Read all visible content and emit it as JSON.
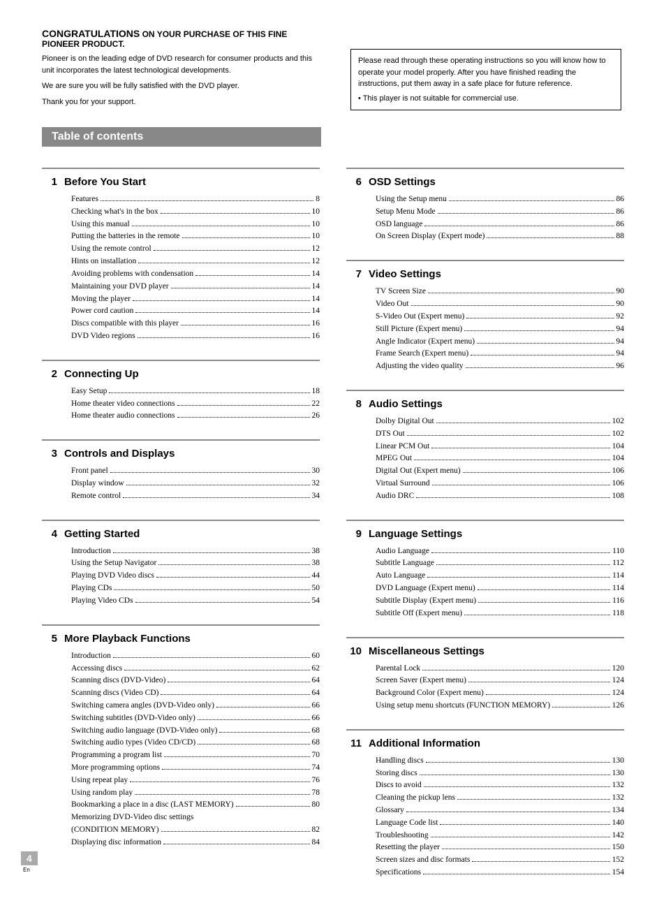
{
  "header": {
    "congrats_big": "CONGRATULATIONS",
    "congrats_rest": " ON YOUR PURCHASE OF THIS FINE PIONEER PRODUCT.",
    "intro1": "Pioneer is on the leading edge of DVD research for consumer products and this unit incorporates the latest technological developments.",
    "intro2": "We are sure you will be fully satisfied with the DVD player.",
    "intro3": "Thank you for your support."
  },
  "note_box": {
    "text": "Please read through these operating instructions so you will know how to operate your model properly. After you have finished reading the instructions, put them away in a safe place for future reference.",
    "bullet": "• This player is not suitable for commercial use."
  },
  "toc_banner": "Table of contents",
  "footer": {
    "page_num": "4",
    "lang": "En"
  },
  "colors": {
    "banner_bg": "#888888",
    "rule": "#888888"
  },
  "left_sections": [
    {
      "num": "1",
      "title": "Before You Start",
      "items": [
        {
          "label": "Features",
          "page": "8"
        },
        {
          "label": "Checking what's in the box",
          "page": "10"
        },
        {
          "label": "Using this manual",
          "page": "10"
        },
        {
          "label": "Putting the batteries in the remote",
          "page": "10"
        },
        {
          "label": "Using the remote control",
          "page": "12"
        },
        {
          "label": "Hints on installation",
          "page": "12"
        },
        {
          "label": "Avoiding problems with condensation",
          "page": "14"
        },
        {
          "label": "Maintaining your DVD player",
          "page": "14"
        },
        {
          "label": "Moving the player",
          "page": "14"
        },
        {
          "label": "Power cord caution",
          "page": "14"
        },
        {
          "label": "Discs compatible with this player",
          "page": "16"
        },
        {
          "label": "DVD Video regions",
          "page": "16"
        }
      ]
    },
    {
      "num": "2",
      "title": "Connecting Up",
      "items": [
        {
          "label": "Easy Setup",
          "page": "18"
        },
        {
          "label": "Home theater video connections",
          "page": "22"
        },
        {
          "label": "Home theater audio connections",
          "page": "26"
        }
      ]
    },
    {
      "num": "3",
      "title": "Controls and Displays",
      "items": [
        {
          "label": "Front panel",
          "page": "30"
        },
        {
          "label": "Display window",
          "page": "32"
        },
        {
          "label": "Remote control",
          "page": "34"
        }
      ]
    },
    {
      "num": "4",
      "title": "Getting Started",
      "items": [
        {
          "label": "Introduction",
          "page": "38"
        },
        {
          "label": "Using the Setup Navigator",
          "page": "38"
        },
        {
          "label": "Playing DVD Video discs",
          "page": "44"
        },
        {
          "label": "Playing CDs",
          "page": "50"
        },
        {
          "label": "Playing Video CDs",
          "page": "54"
        }
      ]
    },
    {
      "num": "5",
      "title": "More Playback Functions",
      "items": [
        {
          "label": "Introduction",
          "page": "60"
        },
        {
          "label": "Accessing discs",
          "page": "62"
        },
        {
          "label": "Scanning discs (DVD-Video)",
          "page": "64"
        },
        {
          "label": "Scanning discs (Video CD)",
          "page": "64"
        },
        {
          "label": "Switching camera angles (DVD-Video only)",
          "page": "66"
        },
        {
          "label": "Switching subtitles (DVD-Video only)",
          "page": "66"
        },
        {
          "label": "Switching audio language (DVD-Video only)",
          "page": "68"
        },
        {
          "label": "Switching audio types (Video CD/CD)",
          "page": "68"
        },
        {
          "label": "Programming a program list",
          "page": "70"
        },
        {
          "label": "More programming options",
          "page": "74"
        },
        {
          "label": "Using repeat play",
          "page": "76"
        },
        {
          "label": "Using random play",
          "page": "78"
        },
        {
          "label": "Bookmarking a place in a disc (LAST MEMORY)",
          "page": "80"
        },
        {
          "label": "Memorizing DVD-Video disc settings (CONDITION MEMORY)",
          "page": "82",
          "wrap": true
        },
        {
          "label": "Displaying disc information",
          "page": "84"
        }
      ]
    }
  ],
  "right_sections": [
    {
      "num": "6",
      "title": "OSD Settings",
      "items": [
        {
          "label": "Using the Setup menu",
          "page": "86"
        },
        {
          "label": "Setup Menu Mode",
          "page": "86"
        },
        {
          "label": "OSD language",
          "page": "86"
        },
        {
          "label": "On Screen Display (Expert mode)",
          "page": "88"
        }
      ]
    },
    {
      "num": "7",
      "title": "Video Settings",
      "items": [
        {
          "label": "TV Screen Size",
          "page": "90"
        },
        {
          "label": "Video Out",
          "page": "90"
        },
        {
          "label": "S-Video Out (Expert menu)",
          "page": "92"
        },
        {
          "label": "Still Picture (Expert menu)",
          "page": "94"
        },
        {
          "label": "Angle Indicator (Expert menu)",
          "page": "94"
        },
        {
          "label": "Frame Search (Expert menu)",
          "page": "94"
        },
        {
          "label": "Adjusting the video quality",
          "page": "96"
        }
      ]
    },
    {
      "num": "8",
      "title": "Audio Settings",
      "items": [
        {
          "label": "Dolby Digital Out",
          "page": "102"
        },
        {
          "label": "DTS Out",
          "page": "102"
        },
        {
          "label": "Linear PCM Out",
          "page": "104"
        },
        {
          "label": "MPEG Out",
          "page": "104"
        },
        {
          "label": "Digital Out (Expert menu)",
          "page": "106"
        },
        {
          "label": "Virtual Surround",
          "page": "106"
        },
        {
          "label": "Audio DRC",
          "page": "108"
        }
      ]
    },
    {
      "num": "9",
      "title": "Language Settings",
      "items": [
        {
          "label": "Audio Language",
          "page": "110"
        },
        {
          "label": "Subtitle Language",
          "page": "112"
        },
        {
          "label": "Auto Language",
          "page": "114"
        },
        {
          "label": "DVD Language (Expert menu)",
          "page": "114"
        },
        {
          "label": "Subtitle Display (Expert menu)",
          "page": "116"
        },
        {
          "label": "Subtitle Off (Expert menu)",
          "page": "118"
        }
      ]
    },
    {
      "num": "10",
      "title": "Miscellaneous Settings",
      "items": [
        {
          "label": "Parental Lock",
          "page": "120"
        },
        {
          "label": "Screen Saver (Expert menu)",
          "page": "124"
        },
        {
          "label": "Background Color (Expert menu)",
          "page": "124"
        },
        {
          "label": "Using setup menu shortcuts (FUNCTION MEMORY)",
          "page": "126"
        }
      ]
    },
    {
      "num": "11",
      "title": "Additional Information",
      "items": [
        {
          "label": "Handling discs",
          "page": "130"
        },
        {
          "label": "Storing discs",
          "page": "130"
        },
        {
          "label": "Discs to avoid",
          "page": "132"
        },
        {
          "label": "Cleaning the pickup lens",
          "page": "132"
        },
        {
          "label": "Glossary",
          "page": "134"
        },
        {
          "label": "Language Code list",
          "page": "140"
        },
        {
          "label": "Troubleshooting",
          "page": "142"
        },
        {
          "label": "Resetting the player",
          "page": "150"
        },
        {
          "label": "Screen sizes and disc formats",
          "page": "152"
        },
        {
          "label": "Specifications",
          "page": "154"
        }
      ]
    }
  ]
}
